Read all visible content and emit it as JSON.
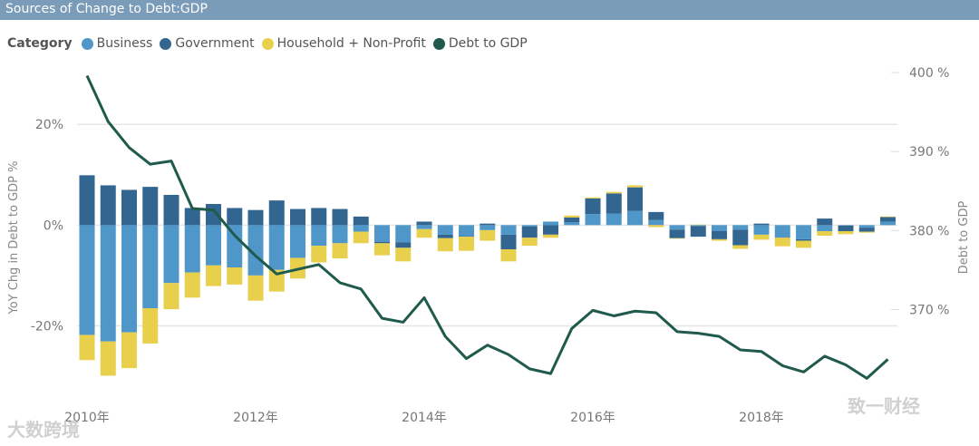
{
  "title": "Sources of Change to Debt:GDP",
  "watermarks": {
    "left": "大数跨境",
    "right": "致一财经"
  },
  "chart_data": {
    "type": "bar+line",
    "title": "Sources of Change to Debt:GDP",
    "legend_title": "Category",
    "legend_position": "top-left",
    "colors": {
      "Business": "#4f97c9",
      "Government": "#326690",
      "Household + Non-Profit": "#e8cf4c",
      "Debt to GDP": "#1f5a4c"
    },
    "ylabel_left": "YoY Chg in Debt to GDP %",
    "ylabel_right": "Debt to GDP",
    "ylim_left": [
      -34.5,
      33.9
    ],
    "ylim_right": [
      358.7,
      402.3
    ],
    "left_ticks": [
      {
        "v": 20,
        "label": "20%"
      },
      {
        "v": 0,
        "label": "0%"
      },
      {
        "v": -20,
        "label": "-20%"
      }
    ],
    "right_ticks": [
      {
        "v": 400,
        "label": "400 %"
      },
      {
        "v": 390,
        "label": "390 %"
      },
      {
        "v": 380,
        "label": "380 %"
      },
      {
        "v": 370,
        "label": "370 %"
      }
    ],
    "x_ticks": [
      {
        "i": 0,
        "label": "2010年"
      },
      {
        "i": 8,
        "label": "2012年"
      },
      {
        "i": 16,
        "label": "2014年"
      },
      {
        "i": 24,
        "label": "2016年"
      },
      {
        "i": 32,
        "label": "2018年"
      }
    ],
    "x_start": "2010 Q1",
    "x_end": "2019 Q3",
    "series": [
      {
        "name": "Business",
        "type": "bar",
        "values": [
          -21.8,
          -23.1,
          -21.3,
          -16.5,
          -11.5,
          -9.4,
          -8.0,
          -8.4,
          -10.0,
          -8.9,
          -6.5,
          -4.1,
          -3.6,
          -1.3,
          -3.3,
          -3.4,
          -0.8,
          -1.9,
          -2.2,
          -1.0,
          -1.9,
          -0.3,
          0.7,
          0.6,
          2.2,
          2.3,
          2.8,
          1.0,
          -0.9,
          -0.2,
          -1.2,
          -0.9,
          -1.9,
          -2.4,
          -2.8,
          -1.2,
          -0.1,
          -0.5,
          0.7
        ]
      },
      {
        "name": "Government",
        "type": "bar",
        "values": [
          9.9,
          7.9,
          7.0,
          7.6,
          6.0,
          3.4,
          4.2,
          3.4,
          3.0,
          4.9,
          3.2,
          3.4,
          3.2,
          1.7,
          -0.3,
          -1.1,
          0.7,
          -0.7,
          -0.1,
          0.3,
          -2.9,
          -2.2,
          -1.9,
          0.9,
          3.1,
          4.0,
          4.7,
          1.6,
          -1.7,
          -2.1,
          -1.6,
          -3.1,
          0.3,
          -0.1,
          -0.3,
          1.3,
          -1.1,
          -0.8,
          0.9
        ]
      },
      {
        "name": "Household + Non-Profit",
        "type": "bar",
        "values": [
          -5.0,
          -6.8,
          -7.1,
          -7.0,
          -5.2,
          -5.0,
          -4.1,
          -3.4,
          -5.0,
          -4.3,
          -4.1,
          -3.3,
          -3.0,
          -2.3,
          -2.4,
          -2.7,
          -1.7,
          -2.6,
          -2.8,
          -2.1,
          -2.4,
          -1.6,
          -0.6,
          0.4,
          0.2,
          0.3,
          0.4,
          -0.4,
          -0.1,
          0.1,
          -0.3,
          -0.7,
          -1.0,
          -1.7,
          -1.4,
          -0.9,
          -0.6,
          -0.2,
          0.1
        ]
      },
      {
        "name": "Debt to GDP",
        "type": "line",
        "axis": "right",
        "values": [
          399.6,
          393.8,
          390.5,
          388.4,
          388.8,
          382.8,
          382.6,
          379.4,
          376.8,
          374.5,
          375.1,
          375.7,
          373.4,
          372.6,
          368.9,
          368.4,
          371.5,
          366.6,
          363.8,
          365.5,
          364.3,
          362.5,
          361.9,
          367.6,
          369.9,
          369.2,
          369.8,
          369.6,
          367.2,
          367.0,
          366.6,
          364.9,
          364.7,
          362.9,
          362.1,
          364.1,
          363.0,
          361.3,
          363.7
        ]
      }
    ]
  }
}
